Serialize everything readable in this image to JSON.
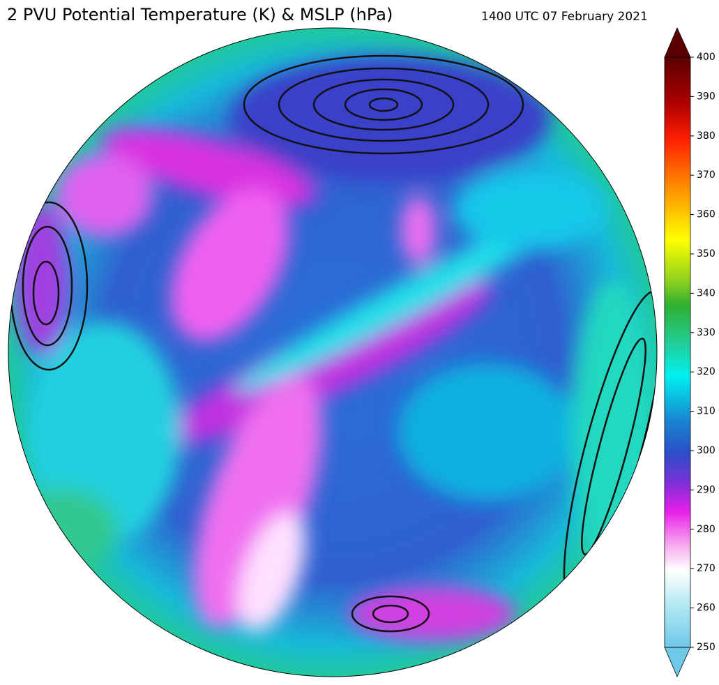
{
  "header": {
    "title": "2 PVU Potential Temperature (K) & MSLP (hPa)",
    "timestamp": "1400 UTC 07 February 2021"
  },
  "colorbar": {
    "lim": [
      250,
      400
    ],
    "ticks": [
      250,
      260,
      270,
      280,
      290,
      300,
      310,
      320,
      330,
      340,
      350,
      360,
      370,
      380,
      390,
      400
    ]
  }
}
